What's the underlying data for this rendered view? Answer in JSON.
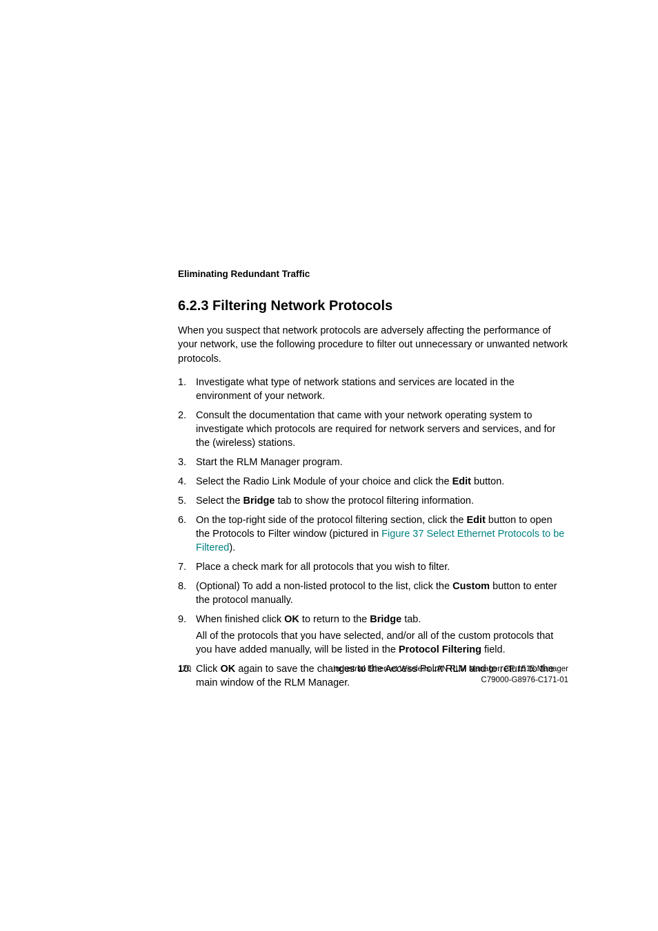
{
  "header": {
    "running_title": "Eliminating Redundant Traffic"
  },
  "section": {
    "number": "6.2.3",
    "title": "Filtering Network Protocols",
    "intro": "When you suspect that network protocols are adversely affecting the performance of your network, use the following procedure to filter out unnecessary or unwanted network protocols."
  },
  "steps": {
    "s1": {
      "num": "1.",
      "text": "Investigate what type of network stations and services are located in the environment of your network."
    },
    "s2": {
      "num": "2.",
      "text": "Consult the documentation that came with your network operating system to investigate which protocols are required for network servers and services, and for the (wireless) stations."
    },
    "s3": {
      "num": "3.",
      "text": "Start the RLM Manager program."
    },
    "s4": {
      "num": "4.",
      "pre": "Select the Radio Link Module of your choice and click the ",
      "bold": "Edit",
      "post": " button."
    },
    "s5": {
      "num": "5.",
      "pre": "Select the ",
      "bold": "Bridge",
      "post": " tab to show the protocol filtering information."
    },
    "s6": {
      "num": "6.",
      "pre": "On the top-right side of the protocol filtering section, click the ",
      "bold": "Edit",
      "mid": " button to open the Protocols to Filter window (pictured in ",
      "link": "Figure 37 Select Ethernet Protocols to be Filtered",
      "post": ")."
    },
    "s7": {
      "num": "7.",
      "text": "Place a check mark for all protocols that you wish to filter."
    },
    "s8": {
      "num": "8.",
      "pre": "(Optional) To add a non-listed protocol to the list, click the ",
      "bold": "Custom",
      "post": " button to enter the protocol manually."
    },
    "s9": {
      "num": "9.",
      "pre": "When finished click ",
      "bold1": "OK",
      "mid1": " to return to the ",
      "bold2": "Bridge",
      "post1": " tab.",
      "sub_pre": "All of the protocols that you have selected, and/or all of the custom protocols that you have added manually, will be listed in the ",
      "sub_bold": "Protocol Filtering",
      "sub_post": " field."
    },
    "s10": {
      "num": "10.",
      "pre": "Click ",
      "bold": "OK",
      "post": " again to save the changes to the Access Point RLM and to return to the main window of the RLM Manager."
    }
  },
  "footer": {
    "page": "120",
    "line1": "Industrial Ethernet Wireless LAN  RLM Manager,  CP 1515 Manager",
    "line2": "C79000-G8976-C171-01"
  },
  "colors": {
    "text": "#000000",
    "link": "#008080",
    "background": "#ffffff"
  },
  "typography": {
    "body_fontsize_pt": 11,
    "heading_fontsize_pt": 15,
    "header_fontsize_pt": 10,
    "footer_fontsize_pt": 9,
    "font_family": "Arial, Helvetica, sans-serif"
  }
}
